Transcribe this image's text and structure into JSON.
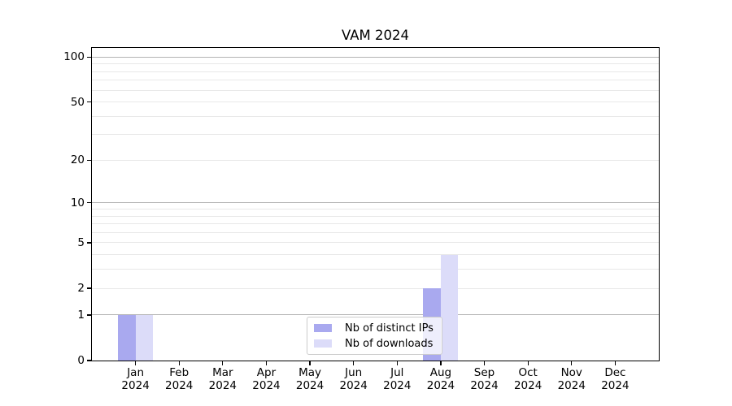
{
  "chart_data": {
    "type": "bar",
    "title": "VAM 2024",
    "categories": [
      "Jan",
      "Feb",
      "Mar",
      "Apr",
      "May",
      "Jun",
      "Jul",
      "Aug",
      "Sep",
      "Oct",
      "Nov",
      "Dec"
    ],
    "category_year": "2024",
    "series": [
      {
        "name": "Nb of distinct IPs",
        "color": "#a9a9ef",
        "values": [
          1,
          0,
          0,
          0,
          0,
          0,
          0,
          2,
          0,
          0,
          0,
          0
        ]
      },
      {
        "name": "Nb of downloads",
        "color": "#dcdcf9",
        "values": [
          1,
          0,
          0,
          0,
          0,
          0,
          0,
          4,
          0,
          0,
          0,
          0
        ]
      }
    ],
    "xlabel": "",
    "ylabel": "",
    "yscale": "log1p",
    "ylim": [
      0,
      115
    ],
    "ytick_labels": [
      0,
      1,
      2,
      5,
      10,
      20,
      50,
      100
    ],
    "grid": {
      "on": true,
      "major_values": [
        1,
        10,
        100
      ],
      "minor_values": [
        2,
        3,
        4,
        5,
        6,
        7,
        8,
        9,
        20,
        30,
        40,
        50,
        60,
        70,
        80,
        90
      ],
      "major_color": "#b3b3b3",
      "minor_color": "#e8e8e8"
    },
    "legend_position": "lower center",
    "colors": {
      "axis": "#000000",
      "text": "#000000",
      "background": "#ffffff"
    }
  }
}
